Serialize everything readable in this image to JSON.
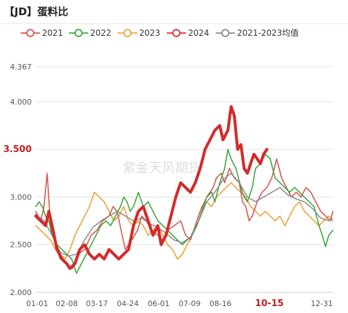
{
  "title": "【JD】蛋料比",
  "watermark": "紫金天风期货",
  "chart_data": {
    "type": "line",
    "title": "【JD】蛋料比",
    "xlabel": "",
    "ylabel": "",
    "ylim": [
      2.0,
      4.367
    ],
    "y_ticks": [
      "2.000",
      "2.500",
      "3.000",
      "3.500",
      "4.000",
      "4.367"
    ],
    "x_ticks": [
      "01-01",
      "02-08",
      "03-17",
      "04-24",
      "06-01",
      "07-09",
      "08-16",
      "10-15",
      "12-31"
    ],
    "x_tick_days": [
      0,
      38,
      75,
      113,
      151,
      189,
      227,
      287,
      365
    ],
    "current_date_label": "10-15",
    "current_value_label": "3.500",
    "current_value": 3.5,
    "grid": true,
    "legend_position": "top",
    "colors": {
      "2021": "#d9534f",
      "2022": "#3aa63a",
      "2023": "#f0a030",
      "2024": "#d42a2a",
      "2021-2023均值": "#888888"
    },
    "series": [
      {
        "name": "2021",
        "points": [
          [
            0,
            2.85
          ],
          [
            6,
            2.75
          ],
          [
            10,
            2.9
          ],
          [
            14,
            3.25
          ],
          [
            18,
            2.7
          ],
          [
            24,
            2.5
          ],
          [
            30,
            2.35
          ],
          [
            38,
            2.3
          ],
          [
            45,
            2.25
          ],
          [
            52,
            2.4
          ],
          [
            60,
            2.45
          ],
          [
            68,
            2.6
          ],
          [
            75,
            2.65
          ],
          [
            82,
            2.75
          ],
          [
            90,
            2.8
          ],
          [
            95,
            2.9
          ],
          [
            100,
            2.85
          ],
          [
            106,
            2.6
          ],
          [
            110,
            2.45
          ],
          [
            118,
            2.55
          ],
          [
            125,
            2.65
          ],
          [
            130,
            2.8
          ],
          [
            136,
            2.75
          ],
          [
            142,
            2.65
          ],
          [
            150,
            2.6
          ],
          [
            156,
            2.55
          ],
          [
            162,
            2.65
          ],
          [
            170,
            2.7
          ],
          [
            178,
            2.75
          ],
          [
            184,
            2.6
          ],
          [
            190,
            2.55
          ],
          [
            196,
            2.7
          ],
          [
            202,
            2.85
          ],
          [
            210,
            3.0
          ],
          [
            218,
            3.1
          ],
          [
            222,
            3.2
          ],
          [
            228,
            3.25
          ],
          [
            232,
            3.15
          ],
          [
            238,
            3.3
          ],
          [
            244,
            3.2
          ],
          [
            250,
            3.15
          ],
          [
            254,
            2.95
          ],
          [
            258,
            2.9
          ],
          [
            262,
            2.75
          ],
          [
            266,
            2.8
          ],
          [
            272,
            2.95
          ],
          [
            278,
            3.05
          ],
          [
            284,
            3.1
          ],
          [
            290,
            3.2
          ],
          [
            296,
            3.4
          ],
          [
            302,
            3.2
          ],
          [
            308,
            3.1
          ],
          [
            314,
            3.0
          ],
          [
            320,
            3.05
          ],
          [
            326,
            3.0
          ],
          [
            332,
            3.1
          ],
          [
            338,
            3.05
          ],
          [
            344,
            2.95
          ],
          [
            350,
            2.85
          ],
          [
            356,
            2.8
          ],
          [
            362,
            2.75
          ],
          [
            365,
            2.85
          ]
        ]
      },
      {
        "name": "2022",
        "points": [
          [
            0,
            2.9
          ],
          [
            4,
            2.95
          ],
          [
            8,
            2.9
          ],
          [
            12,
            2.8
          ],
          [
            16,
            2.75
          ],
          [
            20,
            2.6
          ],
          [
            26,
            2.5
          ],
          [
            32,
            2.45
          ],
          [
            38,
            2.4
          ],
          [
            44,
            2.35
          ],
          [
            50,
            2.2
          ],
          [
            56,
            2.3
          ],
          [
            62,
            2.4
          ],
          [
            68,
            2.5
          ],
          [
            74,
            2.6
          ],
          [
            80,
            2.7
          ],
          [
            86,
            2.75
          ],
          [
            92,
            2.7
          ],
          [
            98,
            2.8
          ],
          [
            104,
            2.9
          ],
          [
            108,
            3.0
          ],
          [
            112,
            2.95
          ],
          [
            116,
            2.85
          ],
          [
            120,
            2.9
          ],
          [
            126,
            3.05
          ],
          [
            132,
            2.9
          ],
          [
            138,
            2.95
          ],
          [
            144,
            2.85
          ],
          [
            150,
            2.75
          ],
          [
            156,
            2.7
          ],
          [
            162,
            2.65
          ],
          [
            168,
            2.6
          ],
          [
            174,
            2.55
          ],
          [
            180,
            2.5
          ],
          [
            186,
            2.55
          ],
          [
            192,
            2.6
          ],
          [
            198,
            2.7
          ],
          [
            204,
            2.85
          ],
          [
            210,
            3.0
          ],
          [
            216,
            3.05
          ],
          [
            220,
            2.95
          ],
          [
            226,
            3.15
          ],
          [
            232,
            3.3
          ],
          [
            236,
            3.5
          ],
          [
            240,
            3.4
          ],
          [
            246,
            3.3
          ],
          [
            252,
            3.1
          ],
          [
            256,
            3.0
          ],
          [
            260,
            2.95
          ],
          [
            266,
            3.1
          ],
          [
            270,
            3.3
          ],
          [
            276,
            3.35
          ],
          [
            282,
            3.45
          ],
          [
            288,
            3.4
          ],
          [
            294,
            3.2
          ],
          [
            300,
            3.15
          ],
          [
            306,
            3.1
          ],
          [
            312,
            3.05
          ],
          [
            318,
            3.1
          ],
          [
            324,
            3.05
          ],
          [
            330,
            3.0
          ],
          [
            336,
            2.95
          ],
          [
            342,
            2.9
          ],
          [
            348,
            2.7
          ],
          [
            352,
            2.6
          ],
          [
            356,
            2.48
          ],
          [
            360,
            2.6
          ],
          [
            365,
            2.65
          ]
        ]
      },
      {
        "name": "2023",
        "points": [
          [
            0,
            2.7
          ],
          [
            6,
            2.65
          ],
          [
            12,
            2.6
          ],
          [
            18,
            2.55
          ],
          [
            24,
            2.45
          ],
          [
            30,
            2.4
          ],
          [
            36,
            2.35
          ],
          [
            42,
            2.45
          ],
          [
            48,
            2.6
          ],
          [
            54,
            2.7
          ],
          [
            60,
            2.8
          ],
          [
            66,
            2.9
          ],
          [
            72,
            3.05
          ],
          [
            78,
            3.0
          ],
          [
            84,
            2.95
          ],
          [
            90,
            2.85
          ],
          [
            96,
            2.75
          ],
          [
            102,
            2.8
          ],
          [
            108,
            2.9
          ],
          [
            114,
            2.75
          ],
          [
            120,
            2.7
          ],
          [
            126,
            2.75
          ],
          [
            132,
            2.7
          ],
          [
            138,
            2.6
          ],
          [
            144,
            2.65
          ],
          [
            150,
            2.7
          ],
          [
            156,
            2.6
          ],
          [
            162,
            2.5
          ],
          [
            168,
            2.45
          ],
          [
            174,
            2.35
          ],
          [
            180,
            2.4
          ],
          [
            186,
            2.5
          ],
          [
            192,
            2.6
          ],
          [
            198,
            2.75
          ],
          [
            204,
            2.9
          ],
          [
            210,
            2.95
          ],
          [
            216,
            2.9
          ],
          [
            222,
            3.0
          ],
          [
            228,
            3.05
          ],
          [
            234,
            3.1
          ],
          [
            240,
            3.15
          ],
          [
            246,
            3.1
          ],
          [
            252,
            3.05
          ],
          [
            258,
            3.0
          ],
          [
            264,
            2.9
          ],
          [
            270,
            2.85
          ],
          [
            276,
            2.8
          ],
          [
            282,
            2.85
          ],
          [
            288,
            2.8
          ],
          [
            294,
            2.75
          ],
          [
            300,
            2.8
          ],
          [
            306,
            2.7
          ],
          [
            312,
            2.8
          ],
          [
            318,
            2.9
          ],
          [
            324,
            2.95
          ],
          [
            330,
            2.85
          ],
          [
            336,
            2.8
          ],
          [
            342,
            2.75
          ],
          [
            348,
            2.7
          ],
          [
            354,
            2.75
          ],
          [
            360,
            2.8
          ],
          [
            365,
            2.75
          ]
        ]
      },
      {
        "name": "2024",
        "points": [
          [
            0,
            2.8
          ],
          [
            6,
            2.75
          ],
          [
            12,
            2.7
          ],
          [
            16,
            2.85
          ],
          [
            20,
            2.7
          ],
          [
            26,
            2.45
          ],
          [
            32,
            2.35
          ],
          [
            38,
            2.3
          ],
          [
            42,
            2.25
          ],
          [
            48,
            2.3
          ],
          [
            54,
            2.45
          ],
          [
            60,
            2.5
          ],
          [
            66,
            2.4
          ],
          [
            72,
            2.35
          ],
          [
            78,
            2.4
          ],
          [
            84,
            2.35
          ],
          [
            90,
            2.45
          ],
          [
            96,
            2.4
          ],
          [
            102,
            2.35
          ],
          [
            108,
            2.4
          ],
          [
            114,
            2.45
          ],
          [
            120,
            2.7
          ],
          [
            126,
            2.85
          ],
          [
            132,
            2.9
          ],
          [
            138,
            2.75
          ],
          [
            144,
            2.6
          ],
          [
            150,
            2.7
          ],
          [
            154,
            2.5
          ],
          [
            160,
            2.6
          ],
          [
            166,
            2.8
          ],
          [
            172,
            3.0
          ],
          [
            178,
            3.15
          ],
          [
            184,
            3.1
          ],
          [
            190,
            3.05
          ],
          [
            196,
            3.15
          ],
          [
            202,
            3.3
          ],
          [
            208,
            3.5
          ],
          [
            214,
            3.6
          ],
          [
            220,
            3.7
          ],
          [
            226,
            3.75
          ],
          [
            230,
            3.6
          ],
          [
            236,
            3.7
          ],
          [
            240,
            3.95
          ],
          [
            244,
            3.85
          ],
          [
            248,
            3.5
          ],
          [
            252,
            3.55
          ],
          [
            256,
            3.3
          ],
          [
            260,
            3.25
          ],
          [
            264,
            3.35
          ],
          [
            268,
            3.45
          ],
          [
            272,
            3.4
          ],
          [
            276,
            3.35
          ],
          [
            280,
            3.45
          ],
          [
            284,
            3.5
          ]
        ]
      },
      {
        "name": "2021-2023均值",
        "points": [
          [
            0,
            2.82
          ],
          [
            10,
            2.75
          ],
          [
            20,
            2.6
          ],
          [
            30,
            2.42
          ],
          [
            40,
            2.38
          ],
          [
            50,
            2.4
          ],
          [
            60,
            2.55
          ],
          [
            70,
            2.68
          ],
          [
            80,
            2.75
          ],
          [
            90,
            2.8
          ],
          [
            100,
            2.85
          ],
          [
            110,
            2.8
          ],
          [
            120,
            2.75
          ],
          [
            130,
            2.78
          ],
          [
            140,
            2.72
          ],
          [
            150,
            2.68
          ],
          [
            160,
            2.62
          ],
          [
            170,
            2.55
          ],
          [
            180,
            2.52
          ],
          [
            190,
            2.58
          ],
          [
            200,
            2.75
          ],
          [
            210,
            2.95
          ],
          [
            220,
            3.05
          ],
          [
            230,
            3.18
          ],
          [
            240,
            3.25
          ],
          [
            250,
            3.15
          ],
          [
            260,
            3.0
          ],
          [
            270,
            2.95
          ],
          [
            280,
            3.0
          ],
          [
            290,
            3.05
          ],
          [
            300,
            3.1
          ],
          [
            310,
            3.02
          ],
          [
            320,
            2.98
          ],
          [
            330,
            2.95
          ],
          [
            340,
            2.88
          ],
          [
            350,
            2.78
          ],
          [
            360,
            2.75
          ],
          [
            365,
            2.78
          ]
        ]
      }
    ]
  }
}
